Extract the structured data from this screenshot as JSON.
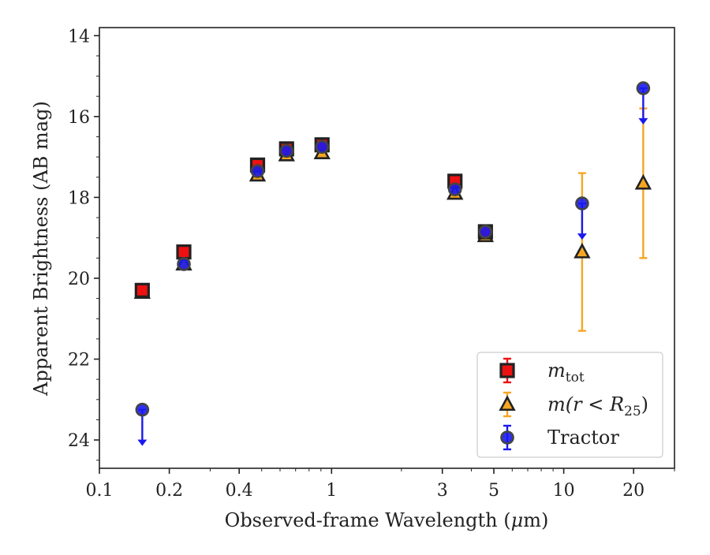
{
  "chart_data": {
    "type": "scatter",
    "title": "",
    "xlabel_prefix": "Observed-frame Wavelength (",
    "xlabel_mu": "μ",
    "xlabel_suffix": "m)",
    "ylabel": "Apparent Brightness (AB mag)",
    "xscale": "log",
    "xlim": [
      0.1,
      30
    ],
    "ylim": [
      24.7,
      13.8
    ],
    "y_inverted": true,
    "grid": false,
    "legend_placement": "bottom-right",
    "x_ticks": [
      {
        "value": 0.1,
        "label": "0.1"
      },
      {
        "value": 0.2,
        "label": "0.2"
      },
      {
        "value": 0.4,
        "label": "0.4"
      },
      {
        "value": 1,
        "label": "1"
      },
      {
        "value": 3,
        "label": "3"
      },
      {
        "value": 5,
        "label": "5"
      },
      {
        "value": 10,
        "label": "10"
      },
      {
        "value": 20,
        "label": "20"
      }
    ],
    "y_ticks": [
      {
        "value": 14,
        "label": "14"
      },
      {
        "value": 16,
        "label": "16"
      },
      {
        "value": 18,
        "label": "18"
      },
      {
        "value": 20,
        "label": "20"
      },
      {
        "value": 22,
        "label": "22"
      },
      {
        "value": 24,
        "label": "24"
      }
    ],
    "series": [
      {
        "name": "m_tot",
        "legend_label": {
          "base": "m",
          "sub": "tot"
        },
        "marker": "square",
        "color": "#ee1111",
        "edge": "#222222",
        "points": [
          {
            "x": 0.153,
            "y": 20.3
          },
          {
            "x": 0.231,
            "y": 19.35
          },
          {
            "x": 0.48,
            "y": 17.2
          },
          {
            "x": 0.64,
            "y": 16.8
          },
          {
            "x": 0.91,
            "y": 16.7
          },
          {
            "x": 3.4,
            "y": 17.6
          },
          {
            "x": 4.6,
            "y": 18.85
          }
        ]
      },
      {
        "name": "m(r < R25)",
        "legend_label": {
          "base": "m(r < R",
          "sub": "25",
          "tail": ")"
        },
        "marker": "triangle",
        "color": "#f5a623",
        "edge": "#222222",
        "points": [
          {
            "x": 0.153,
            "y": 20.35
          },
          {
            "x": 0.231,
            "y": 19.65
          },
          {
            "x": 0.48,
            "y": 17.45
          },
          {
            "x": 0.64,
            "y": 16.95
          },
          {
            "x": 0.91,
            "y": 16.9
          },
          {
            "x": 3.4,
            "y": 17.9
          },
          {
            "x": 4.6,
            "y": 18.95
          },
          {
            "x": 12.0,
            "y": 19.35,
            "err_low": 1.95,
            "err_high": 1.95
          },
          {
            "x": 22.0,
            "y": 17.65,
            "err_low": 1.85,
            "err_high": 1.85
          }
        ]
      },
      {
        "name": "Tractor",
        "legend_label": {
          "base": "Tractor"
        },
        "marker": "circle",
        "color": "#1a1aee",
        "edge": "#444444",
        "points": [
          {
            "x": 0.153,
            "y": 23.25,
            "upper_limit": true
          },
          {
            "x": 0.231,
            "y": 19.65
          },
          {
            "x": 0.48,
            "y": 17.35
          },
          {
            "x": 0.64,
            "y": 16.85
          },
          {
            "x": 0.91,
            "y": 16.75
          },
          {
            "x": 3.4,
            "y": 17.8
          },
          {
            "x": 4.6,
            "y": 18.85
          },
          {
            "x": 12.0,
            "y": 18.15,
            "upper_limit": true
          },
          {
            "x": 22.0,
            "y": 15.3,
            "upper_limit": true
          }
        ]
      }
    ]
  }
}
